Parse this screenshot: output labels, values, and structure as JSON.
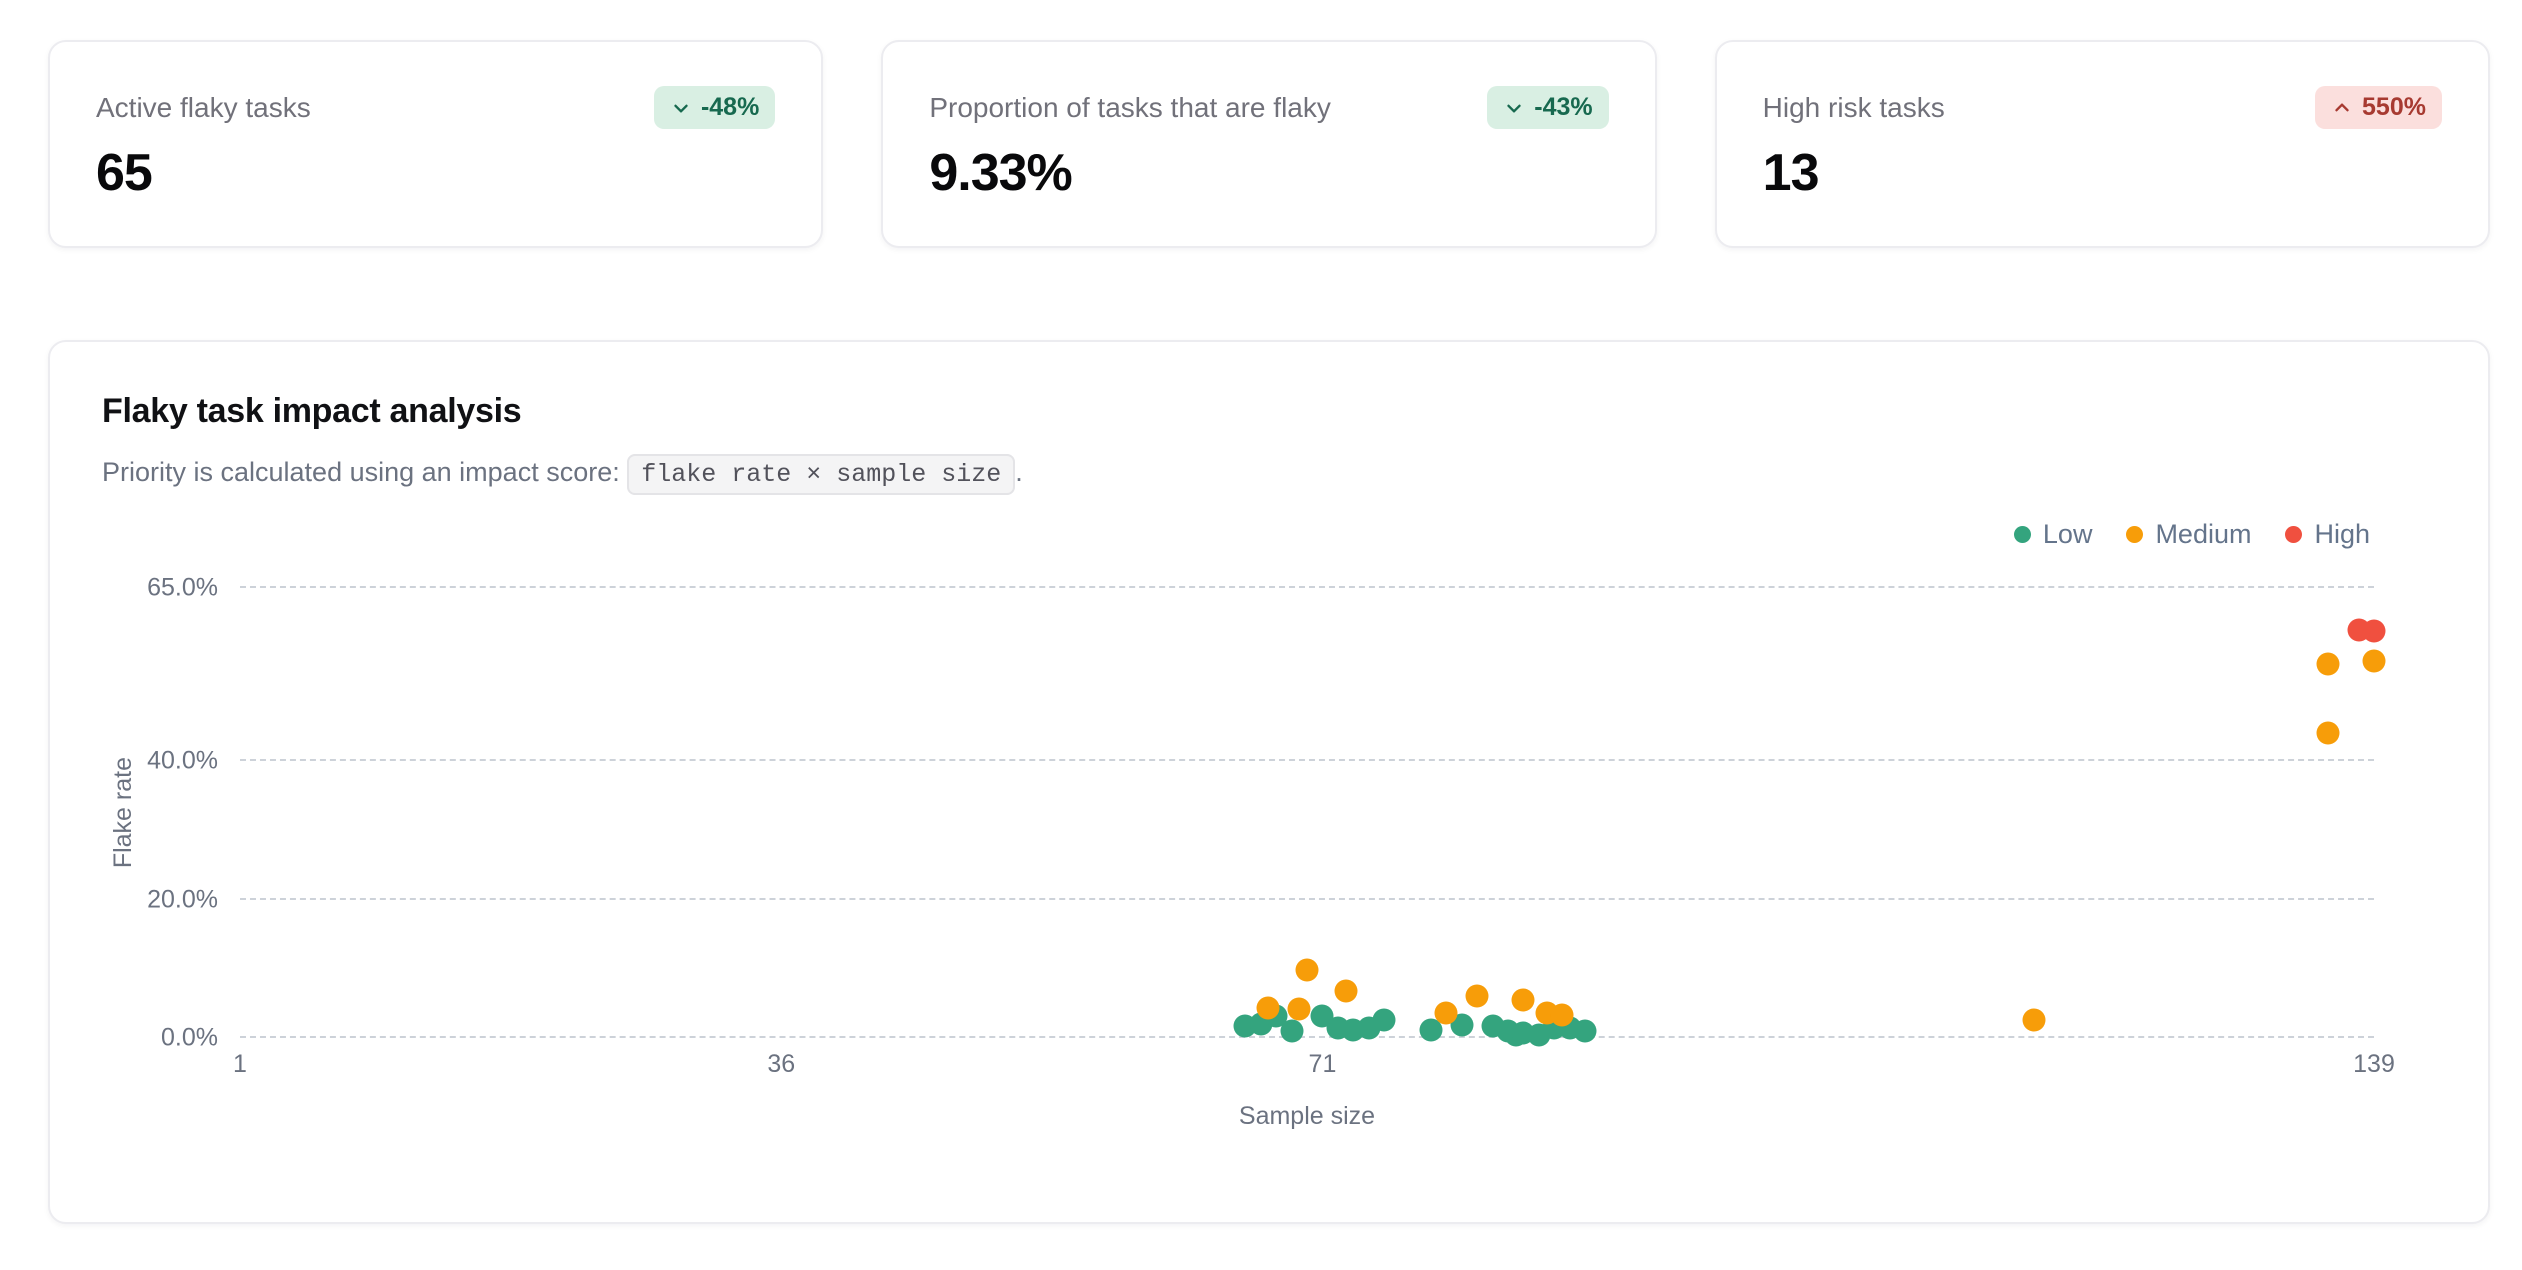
{
  "stats": [
    {
      "label": "Active flaky tasks",
      "value": "65",
      "delta": "-48%",
      "trend": "down",
      "tone": "positive"
    },
    {
      "label": "Proportion of tasks that are flaky",
      "value": "9.33%",
      "delta": "-43%",
      "trend": "down",
      "tone": "positive"
    },
    {
      "label": "High risk tasks",
      "value": "13",
      "delta": "550%",
      "trend": "up",
      "tone": "negative"
    }
  ],
  "chart_card": {
    "title": "Flaky task impact analysis",
    "subtitle_prefix": "Priority is calculated using an impact score: ",
    "formula_code": "flake rate × sample size",
    "subtitle_suffix": "."
  },
  "chart_data": {
    "type": "scatter",
    "title": "Flaky task impact analysis",
    "xlabel": "Sample size",
    "ylabel": "Flake rate",
    "xlim": [
      1,
      139
    ],
    "ylim": [
      0,
      65
    ],
    "x_ticks": [
      1,
      36,
      71,
      139
    ],
    "y_ticks": [
      {
        "value": 0,
        "label": "0.0%"
      },
      {
        "value": 20,
        "label": "20.0%"
      },
      {
        "value": 40,
        "label": "40.0%"
      },
      {
        "value": 65,
        "label": "65.0%"
      }
    ],
    "grid": "horizontal-dashed",
    "legend_position": "top-right",
    "series": [
      {
        "name": "Low",
        "color": "#34A47E",
        "points": [
          [
            66,
            1.8
          ],
          [
            67,
            2.0
          ],
          [
            68,
            3.2
          ],
          [
            69,
            1.0
          ],
          [
            71,
            3.2
          ],
          [
            72,
            1.4
          ],
          [
            73,
            1.2
          ],
          [
            74,
            1.4
          ],
          [
            75,
            2.6
          ],
          [
            78,
            1.2
          ],
          [
            80,
            1.9
          ],
          [
            82,
            1.7
          ],
          [
            83,
            1.0
          ],
          [
            83.5,
            0.5
          ],
          [
            84,
            0.7
          ],
          [
            85,
            0.5
          ],
          [
            86,
            1.4
          ],
          [
            87,
            1.4
          ],
          [
            88,
            1.0
          ]
        ]
      },
      {
        "name": "Medium",
        "color": "#F79D09",
        "points": [
          [
            67.5,
            4.3
          ],
          [
            69.5,
            4.2
          ],
          [
            70,
            9.8
          ],
          [
            72.5,
            6.8
          ],
          [
            79,
            3.6
          ],
          [
            81,
            6.0
          ],
          [
            84,
            5.5
          ],
          [
            85.5,
            3.6
          ],
          [
            86.5,
            3.3
          ],
          [
            117,
            2.6
          ],
          [
            136,
            44
          ],
          [
            136,
            54
          ],
          [
            139,
            54.5
          ]
        ]
      },
      {
        "name": "High",
        "color": "#F0503F",
        "points": [
          [
            138,
            59
          ],
          [
            139,
            58.8
          ]
        ]
      }
    ]
  },
  "colors": {
    "low": "#34A47E",
    "medium": "#F79D09",
    "high": "#F0503F",
    "badge_positive_bg": "#D9EFE3",
    "badge_positive_text": "#17694F",
    "badge_negative_bg": "#FBDFDD",
    "badge_negative_text": "#A73A31",
    "gridline": "#CDD2D9",
    "axis_text": "#6B7280",
    "legend_text": "#64748B"
  }
}
